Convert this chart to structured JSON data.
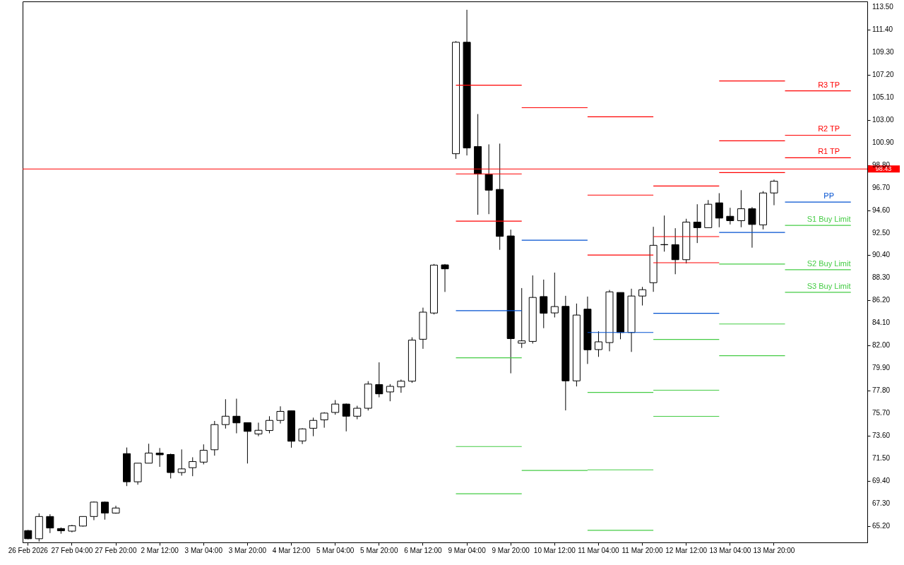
{
  "chart_data": {
    "type": "candlestick",
    "categories": [
      "26 Feb 2026",
      null,
      null,
      null,
      "27 Feb 04:00",
      null,
      null,
      null,
      "27 Feb 20:00",
      null,
      null,
      null,
      "2 Mar 12:00",
      null,
      null,
      null,
      "3 Mar 04:00",
      null,
      null,
      null,
      "3 Mar 20:00",
      null,
      null,
      null,
      "4 Mar 12:00",
      null,
      null,
      null,
      "5 Mar 04:00",
      null,
      null,
      null,
      "5 Mar 20:00",
      null,
      null,
      null,
      "6 Mar 12:00",
      null,
      null,
      null,
      "9 Mar 04:00",
      null,
      null,
      null,
      "9 Mar 20:00",
      null,
      null,
      null,
      "10 Mar 12:00",
      null,
      null,
      null,
      "11 Mar 04:00",
      null,
      null,
      null,
      "11 Mar 20:00",
      null,
      null,
      null,
      "12 Mar 12:00",
      null,
      null,
      null,
      "13 Mar 04:00",
      null,
      null,
      null,
      "13 Mar 20:00",
      null,
      null,
      null,
      null,
      null,
      null,
      null,
      null
    ],
    "ohlc": [
      [
        64.79,
        64.85,
        63.98,
        64.03
      ],
      [
        64.03,
        66.39,
        63.77,
        66.1
      ],
      [
        66.1,
        66.31,
        64.56,
        65.03
      ],
      [
        64.98,
        65.08,
        64.5,
        64.77
      ],
      [
        64.74,
        65.32,
        64.63,
        65.24
      ],
      [
        65.21,
        66.12,
        65.16,
        66.1
      ],
      [
        66.1,
        67.49,
        65.76,
        67.44
      ],
      [
        67.44,
        67.49,
        65.81,
        66.42
      ],
      [
        66.42,
        67.1,
        66.36,
        66.89
      ],
      [
        71.95,
        72.52,
        68.93,
        69.33
      ],
      [
        69.33,
        71.06,
        69.06,
        71.06
      ],
      [
        71.06,
        72.87,
        71.06,
        72.0
      ],
      [
        72.0,
        72.47,
        70.72,
        71.84
      ],
      [
        71.87,
        71.95,
        69.64,
        70.19
      ],
      [
        70.19,
        72.34,
        69.9,
        70.53
      ],
      [
        70.64,
        71.61,
        69.85,
        71.21
      ],
      [
        71.16,
        72.81,
        70.95,
        72.26
      ],
      [
        72.31,
        74.99,
        71.76,
        74.65
      ],
      [
        74.65,
        77.01,
        74.28,
        75.43
      ],
      [
        75.43,
        77.06,
        73.84,
        74.81
      ],
      [
        74.83,
        74.83,
        71.03,
        74.02
      ],
      [
        73.78,
        74.83,
        73.57,
        74.12
      ],
      [
        74.1,
        75.43,
        73.84,
        75.04
      ],
      [
        75.04,
        76.35,
        74.75,
        75.88
      ],
      [
        75.93,
        75.93,
        72.5,
        73.1
      ],
      [
        73.13,
        74.31,
        72.84,
        74.25
      ],
      [
        74.31,
        75.3,
        73.57,
        75.04
      ],
      [
        75.09,
        75.8,
        74.36,
        75.72
      ],
      [
        75.78,
        76.93,
        75.57,
        76.56
      ],
      [
        76.56,
        76.61,
        74.02,
        75.43
      ],
      [
        75.43,
        76.4,
        75.15,
        76.17
      ],
      [
        76.17,
        78.69,
        75.96,
        78.42
      ],
      [
        78.37,
        80.44,
        77.19,
        77.51
      ],
      [
        77.69,
        78.42,
        76.82,
        78.21
      ],
      [
        78.16,
        78.84,
        77.61,
        78.69
      ],
      [
        78.69,
        82.77,
        78.53,
        82.51
      ],
      [
        82.59,
        85.53,
        81.7,
        85.11
      ],
      [
        85.03,
        89.59,
        84.9,
        89.49
      ],
      [
        89.51,
        89.59,
        86.99,
        89.14
      ],
      [
        99.85,
        110.33,
        99.37,
        110.22
      ],
      [
        110.22,
        113.24,
        99.69,
        100.39
      ],
      [
        100.52,
        103.54,
        94.17,
        97.97
      ],
      [
        97.92,
        100.72,
        94.23,
        96.46
      ],
      [
        96.53,
        100.79,
        90.91,
        92.16
      ],
      [
        92.2,
        92.79,
        79.42,
        82.65
      ],
      [
        82.22,
        87.35,
        81.78,
        82.44
      ],
      [
        82.39,
        88.53,
        82.19,
        86.48
      ],
      [
        86.56,
        88.14,
        83.62,
        85.01
      ],
      [
        85.04,
        88.79,
        84.62,
        85.63
      ],
      [
        85.65,
        86.63,
        75.97,
        78.72
      ],
      [
        78.72,
        85.91,
        78.2,
        84.84
      ],
      [
        85.39,
        86.56,
        80.29,
        81.61
      ],
      [
        81.63,
        83.33,
        80.95,
        82.35
      ],
      [
        82.28,
        87.18,
        81.47,
        87.0
      ],
      [
        86.94,
        86.94,
        82.59,
        83.22
      ],
      [
        83.22,
        87.29,
        81.41,
        86.61
      ],
      [
        86.61,
        87.46,
        85.73,
        87.2
      ],
      [
        87.85,
        93.05,
        87.0,
        91.33
      ],
      [
        91.4,
        94.1,
        90.74,
        91.38
      ],
      [
        91.39,
        92.92,
        88.64,
        89.99
      ],
      [
        89.99,
        93.8,
        89.64,
        93.49
      ],
      [
        93.49,
        95.15,
        91.54,
        92.97
      ],
      [
        92.97,
        95.54,
        92.97,
        95.15
      ],
      [
        95.28,
        96.18,
        93.01,
        93.86
      ],
      [
        94.03,
        94.82,
        93.27,
        93.62
      ],
      [
        93.62,
        96.46,
        93.01,
        94.73
      ],
      [
        94.73,
        94.89,
        91.11,
        93.27
      ],
      [
        93.23,
        96.37,
        92.81,
        96.2
      ],
      [
        96.2,
        97.44,
        95.06,
        97.29
      ],
      null,
      null,
      null,
      null,
      null,
      null,
      null,
      null
    ],
    "series": [
      {
        "name": "R3 TP",
        "type": "step",
        "color": "#ff0000",
        "values": [
          null,
          null,
          null,
          null,
          null,
          null,
          null,
          null,
          null,
          null,
          null,
          null,
          null,
          null,
          null,
          null,
          null,
          null,
          null,
          null,
          null,
          null,
          null,
          null,
          null,
          null,
          null,
          null,
          null,
          null,
          null,
          null,
          null,
          null,
          null,
          null,
          null,
          null,
          null,
          106.23,
          106.23,
          106.23,
          106.23,
          106.23,
          106.23,
          null,
          null,
          null,
          null,
          null,
          null,
          103.28,
          103.28,
          103.28,
          103.28,
          103.28,
          103.28,
          96.85,
          96.85,
          96.85,
          96.85,
          96.85,
          96.85,
          106.62,
          106.62,
          106.62,
          106.62,
          106.62,
          106.62,
          105.7,
          105.7,
          105.7,
          105.7,
          105.7,
          105.7,
          105.7,
          null
        ]
      },
      {
        "name": "R2 TP",
        "type": "step",
        "color": "#ff0000",
        "values": [
          null,
          null,
          null,
          null,
          null,
          null,
          null,
          null,
          null,
          null,
          null,
          null,
          null,
          null,
          null,
          null,
          null,
          null,
          null,
          null,
          null,
          null,
          null,
          null,
          null,
          null,
          null,
          null,
          null,
          null,
          null,
          null,
          null,
          null,
          null,
          null,
          null,
          null,
          null,
          97.97,
          97.97,
          97.97,
          97.97,
          97.97,
          97.97,
          null,
          null,
          null,
          null,
          null,
          null,
          96.0,
          96.0,
          96.0,
          96.0,
          96.0,
          96.0,
          92.14,
          92.14,
          92.14,
          92.14,
          92.14,
          92.14,
          101.05,
          101.05,
          101.05,
          101.05,
          101.05,
          101.05,
          101.57,
          101.57,
          101.57,
          101.57,
          101.57,
          101.57,
          101.57,
          null
        ]
      },
      {
        "name": "R1 TP",
        "type": "step",
        "color": "#ff0000",
        "values": [
          null,
          null,
          null,
          null,
          null,
          null,
          null,
          null,
          null,
          null,
          null,
          null,
          null,
          null,
          null,
          null,
          null,
          null,
          null,
          null,
          null,
          null,
          null,
          null,
          null,
          null,
          null,
          null,
          null,
          null,
          null,
          null,
          null,
          null,
          null,
          null,
          null,
          null,
          null,
          93.58,
          93.58,
          93.58,
          93.58,
          93.58,
          93.58,
          104.13,
          104.13,
          104.13,
          104.13,
          104.13,
          104.13,
          90.43,
          90.43,
          90.43,
          90.43,
          90.43,
          90.43,
          89.71,
          89.71,
          89.71,
          89.71,
          89.71,
          89.71,
          98.1,
          98.1,
          98.1,
          98.1,
          98.1,
          98.1,
          99.48,
          99.48,
          99.48,
          99.48,
          99.48,
          99.48,
          99.48,
          null
        ]
      },
      {
        "name": "PP",
        "type": "step",
        "color": "#0050d0",
        "values": [
          null,
          null,
          null,
          null,
          null,
          null,
          null,
          null,
          null,
          null,
          null,
          null,
          null,
          null,
          null,
          null,
          null,
          null,
          null,
          null,
          null,
          null,
          null,
          null,
          null,
          null,
          null,
          null,
          null,
          null,
          null,
          null,
          null,
          null,
          null,
          null,
          null,
          null,
          null,
          85.25,
          85.25,
          85.25,
          85.25,
          85.25,
          85.25,
          91.81,
          91.81,
          91.81,
          91.81,
          91.81,
          91.81,
          83.22,
          83.22,
          83.22,
          83.22,
          83.22,
          83.22,
          85.0,
          85.0,
          85.0,
          85.0,
          85.0,
          85.0,
          92.53,
          92.53,
          92.53,
          92.53,
          92.53,
          92.53,
          95.35,
          95.35,
          95.35,
          95.35,
          95.35,
          95.35,
          95.35,
          null
        ]
      },
      {
        "name": "S1 Buy Limit",
        "type": "step",
        "color": "#44cc44",
        "values": [
          null,
          null,
          null,
          null,
          null,
          null,
          null,
          null,
          null,
          null,
          null,
          null,
          null,
          null,
          null,
          null,
          null,
          null,
          null,
          null,
          null,
          null,
          null,
          null,
          null,
          null,
          null,
          null,
          null,
          null,
          null,
          null,
          null,
          null,
          null,
          null,
          null,
          null,
          null,
          80.86,
          80.86,
          80.86,
          80.86,
          80.86,
          80.86,
          70.38,
          70.38,
          70.38,
          70.38,
          70.38,
          70.38,
          77.65,
          77.65,
          77.65,
          77.65,
          77.65,
          77.65,
          82.57,
          82.57,
          82.57,
          82.57,
          82.57,
          82.57,
          89.58,
          89.58,
          89.58,
          89.58,
          89.58,
          89.58,
          93.18,
          93.18,
          93.18,
          93.18,
          93.18,
          93.18,
          93.18,
          null
        ]
      },
      {
        "name": "S2 Buy Limit",
        "type": "step",
        "color": "#44cc44",
        "values": [
          null,
          null,
          null,
          null,
          null,
          null,
          null,
          null,
          null,
          null,
          null,
          null,
          null,
          null,
          null,
          null,
          null,
          null,
          null,
          null,
          null,
          null,
          null,
          null,
          null,
          null,
          null,
          null,
          null,
          null,
          null,
          null,
          null,
          null,
          null,
          null,
          null,
          null,
          null,
          72.61,
          72.61,
          72.61,
          72.61,
          72.61,
          72.61,
          null,
          null,
          null,
          null,
          null,
          null,
          70.44,
          70.44,
          70.44,
          70.44,
          70.44,
          70.44,
          77.85,
          77.85,
          77.85,
          77.85,
          77.85,
          77.85,
          84.01,
          84.01,
          84.01,
          84.01,
          84.01,
          84.01,
          89.06,
          89.06,
          89.06,
          89.06,
          89.06,
          89.06,
          89.06,
          null
        ]
      },
      {
        "name": "S3 Buy Limit",
        "type": "step",
        "color": "#44cc44",
        "values": [
          null,
          null,
          null,
          null,
          null,
          null,
          null,
          null,
          null,
          null,
          null,
          null,
          null,
          null,
          null,
          null,
          null,
          null,
          null,
          null,
          null,
          null,
          null,
          null,
          null,
          null,
          null,
          null,
          null,
          null,
          null,
          null,
          null,
          null,
          null,
          null,
          null,
          null,
          null,
          68.21,
          68.21,
          68.21,
          68.21,
          68.21,
          68.21,
          null,
          null,
          null,
          null,
          null,
          null,
          64.81,
          64.81,
          64.81,
          64.81,
          64.81,
          64.81,
          75.42,
          75.42,
          75.42,
          75.42,
          75.42,
          75.42,
          81.06,
          81.06,
          81.06,
          81.06,
          81.06,
          81.06,
          86.96,
          86.96,
          86.96,
          86.96,
          86.96,
          86.96,
          86.96,
          null
        ]
      }
    ],
    "ref_lines": [
      {
        "axis": "y",
        "value": 98.43,
        "label": "98.43",
        "color": "#ff0000"
      }
    ],
    "ylim": [
      63.69,
      114.02
    ],
    "yticks": [
      {
        "value": 65.2,
        "label": "65.20"
      },
      {
        "value": 67.3,
        "label": "67.30"
      },
      {
        "value": 69.4,
        "label": "69.40"
      },
      {
        "value": 71.5,
        "label": "71.50"
      },
      {
        "value": 73.6,
        "label": "73.60"
      },
      {
        "value": 75.7,
        "label": "75.70"
      },
      {
        "value": 77.8,
        "label": "77.80"
      },
      {
        "value": 79.9,
        "label": "79.90"
      },
      {
        "value": 82.0,
        "label": "82.00"
      },
      {
        "value": 84.1,
        "label": "84.10"
      },
      {
        "value": 86.2,
        "label": "86.20"
      },
      {
        "value": 88.3,
        "label": "88.30"
      },
      {
        "value": 90.4,
        "label": "90.40"
      },
      {
        "value": 92.5,
        "label": "92.50"
      },
      {
        "value": 94.6,
        "label": "94.60"
      },
      {
        "value": 96.7,
        "label": "96.70"
      },
      {
        "value": 98.8,
        "label": "98.80"
      },
      {
        "value": 100.9,
        "label": "100.90"
      },
      {
        "value": 103.0,
        "label": "103.00"
      },
      {
        "value": 105.1,
        "label": "105.10"
      },
      {
        "value": 107.2,
        "label": "107.20"
      },
      {
        "value": 109.3,
        "label": "109.30"
      },
      {
        "value": 111.4,
        "label": "111.40"
      },
      {
        "value": 113.5,
        "label": "113.50"
      }
    ],
    "grid": false
  }
}
